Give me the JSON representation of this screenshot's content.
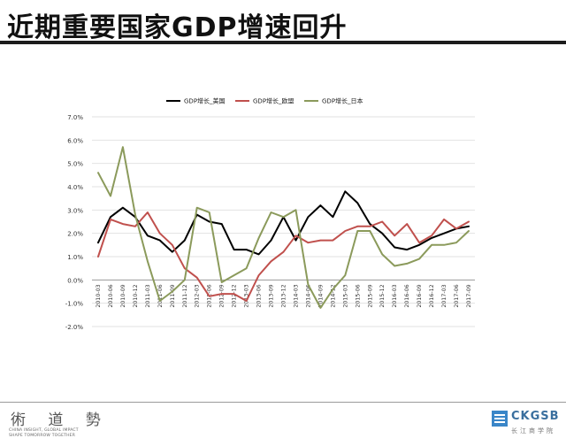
{
  "slide": {
    "title": "近期重要国家GDP增速回升"
  },
  "chart_data": {
    "type": "line",
    "title": "",
    "xlabel": "",
    "ylabel": "",
    "ylim": [
      -0.02,
      0.07
    ],
    "yticks": [
      -0.02,
      -0.01,
      0.0,
      0.01,
      0.02,
      0.03,
      0.04,
      0.05,
      0.06,
      0.07
    ],
    "ytick_labels": [
      "-2.0%",
      "-1.0%",
      "0.0%",
      "1.0%",
      "2.0%",
      "3.0%",
      "4.0%",
      "5.0%",
      "6.0%",
      "7.0%"
    ],
    "grid": "horizontal",
    "legend_position": "top",
    "categories": [
      "2010-03",
      "2010-06",
      "2010-09",
      "2010-12",
      "2011-03",
      "2011-06",
      "2011-09",
      "2011-12",
      "2012-03",
      "2012-06",
      "2012-09",
      "2012-12",
      "2013-03",
      "2013-06",
      "2013-09",
      "2013-12",
      "2014-03",
      "2014-06",
      "2014-09",
      "2014-12",
      "2015-03",
      "2015-06",
      "2015-09",
      "2015-12",
      "2016-03",
      "2016-06",
      "2016-09",
      "2016-12",
      "2017-03",
      "2017-06",
      "2017-09"
    ],
    "series": [
      {
        "name": "GDP增长_美国",
        "color": "#000000",
        "values": [
          0.016,
          0.027,
          0.031,
          0.027,
          0.019,
          0.017,
          0.012,
          0.017,
          0.028,
          0.025,
          0.024,
          0.013,
          0.013,
          0.011,
          0.017,
          0.027,
          0.017,
          0.027,
          0.032,
          0.027,
          0.038,
          0.033,
          0.024,
          0.02,
          0.014,
          0.013,
          0.015,
          0.018,
          0.02,
          0.022,
          0.023
        ]
      },
      {
        "name": "GDP增长_欧盟",
        "color": "#c0504d",
        "values": [
          0.01,
          0.026,
          0.024,
          0.023,
          0.029,
          0.02,
          0.015,
          0.005,
          0.001,
          -0.007,
          -0.006,
          -0.006,
          -0.009,
          0.002,
          0.008,
          0.012,
          0.019,
          0.016,
          0.017,
          0.017,
          0.021,
          0.023,
          0.023,
          0.025,
          0.019,
          0.024,
          0.016,
          0.019,
          0.026,
          0.022,
          0.025
        ]
      },
      {
        "name": "GDP增长_日本",
        "color": "#8b9a5b",
        "values": [
          0.046,
          0.036,
          0.057,
          0.028,
          0.008,
          -0.009,
          -0.005,
          0.0,
          0.031,
          0.029,
          -0.001,
          0.002,
          0.005,
          0.018,
          0.029,
          0.027,
          0.03,
          -0.002,
          -0.012,
          -0.004,
          0.002,
          0.021,
          0.021,
          0.011,
          0.006,
          0.007,
          0.009,
          0.015,
          0.015,
          0.016,
          0.021
        ]
      }
    ]
  },
  "footer": {
    "left_logo_glyphs": "術 道 勢",
    "left_logo_line1": "CHINA INSIGHT, GLOBAL IMPACT",
    "left_logo_line2": "SHAPE TOMORROW TOGETHER",
    "right_logo_name": "CKGSB",
    "right_logo_sub": "长江商学院",
    "right_logo_icon": "ckgsb-emblem-icon"
  }
}
